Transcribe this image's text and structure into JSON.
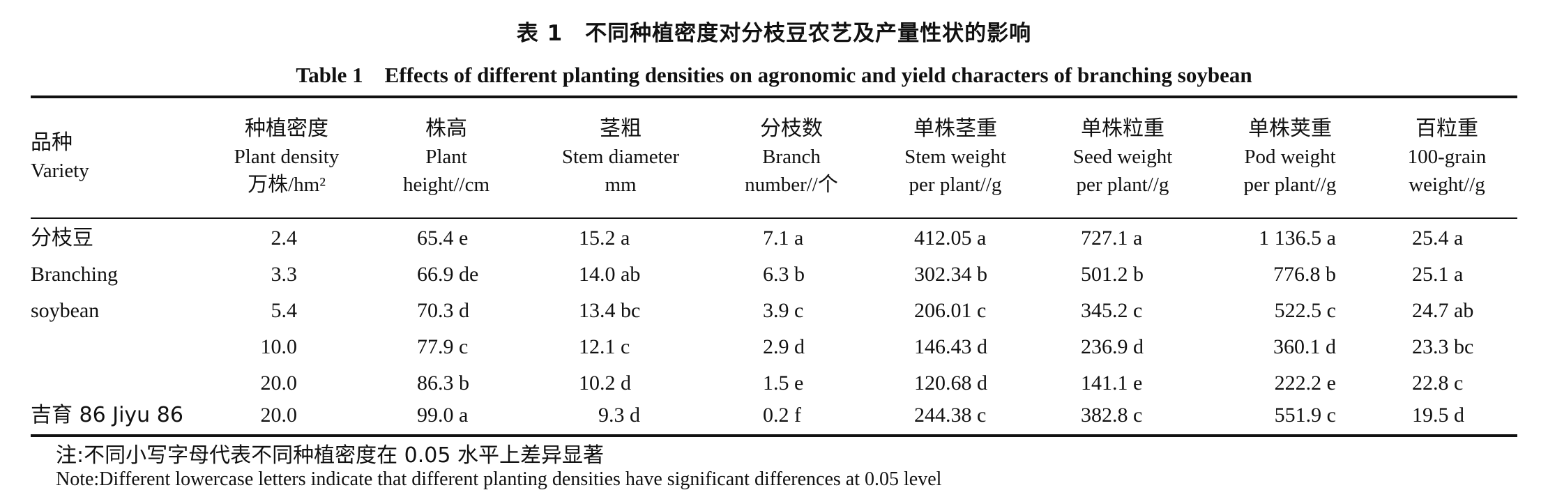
{
  "title_cn": "表 1　不同种植密度对分枝豆农艺及产量性状的影响",
  "title_en": "Table 1　Effects of different planting densities on agronomic and yield characters of branching soybean",
  "headers": [
    {
      "cn": "品种",
      "en1": "Variety",
      "en2": ""
    },
    {
      "cn": "种植密度",
      "en1": "Plant density",
      "en2": "万株/hm²"
    },
    {
      "cn": "株高",
      "en1": "Plant",
      "en2": "height//cm"
    },
    {
      "cn": "茎粗",
      "en1": "Stem diameter",
      "en2": "mm"
    },
    {
      "cn": "分枝数",
      "en1": "Branch",
      "en2": "number//个"
    },
    {
      "cn": "单株茎重",
      "en1": "Stem weight",
      "en2": "per plant//g"
    },
    {
      "cn": "单株粒重",
      "en1": "Seed weight",
      "en2": "per plant//g"
    },
    {
      "cn": "单株荚重",
      "en1": "Pod weight",
      "en2": "per plant//g"
    },
    {
      "cn": "百粒重",
      "en1": "100-grain",
      "en2": "weight//g"
    }
  ],
  "rows": [
    {
      "variety": "分枝豆",
      "density": "2.4",
      "height": "65.4 e",
      "stem": "15.2 a",
      "branch": "7.1 a",
      "stemw": "412.05 a",
      "seedw": "727.1 a",
      "podw": "1 136.5 a",
      "grain": "25.4 a"
    },
    {
      "variety": "Branching",
      "density": "3.3",
      "height": "66.9 de",
      "stem": "14.0 ab",
      "branch": "6.3 b",
      "stemw": "302.34 b",
      "seedw": "501.2 b",
      "podw": "776.8 b",
      "grain": "25.1 a"
    },
    {
      "variety": "soybean",
      "density": "5.4",
      "height": "70.3 d",
      "stem": "13.4 bc",
      "branch": "3.9 c",
      "stemw": "206.01 c",
      "seedw": "345.2 c",
      "podw": "522.5 c",
      "grain": "24.7 ab"
    },
    {
      "variety": "",
      "density": "10.0",
      "height": "77.9 c",
      "stem": "12.1 c",
      "branch": "2.9 d",
      "stemw": "146.43 d",
      "seedw": "236.9 d",
      "podw": "360.1 d",
      "grain": "23.3 bc"
    },
    {
      "variety": "",
      "density": "20.0",
      "height": "86.3 b",
      "stem": "10.2 d",
      "branch": "1.5 e",
      "stemw": "120.68 d",
      "seedw": "141.1 e",
      "podw": "222.2 e",
      "grain": "22.8 c"
    },
    {
      "variety": "吉育 86 Jiyu 86",
      "density": "20.0",
      "height": "99.0 a",
      "stem": "9.3 d",
      "branch": "0.2 f",
      "stemw": "244.38 c",
      "seedw": "382.8 c",
      "podw": "551.9 c",
      "grain": "19.5 d"
    }
  ],
  "note_cn": "注:不同小写字母代表不同种植密度在 0.05 水平上差异显著",
  "note_en": "Note:Different lowercase letters indicate that different planting densities have significant differences at 0.05 level"
}
